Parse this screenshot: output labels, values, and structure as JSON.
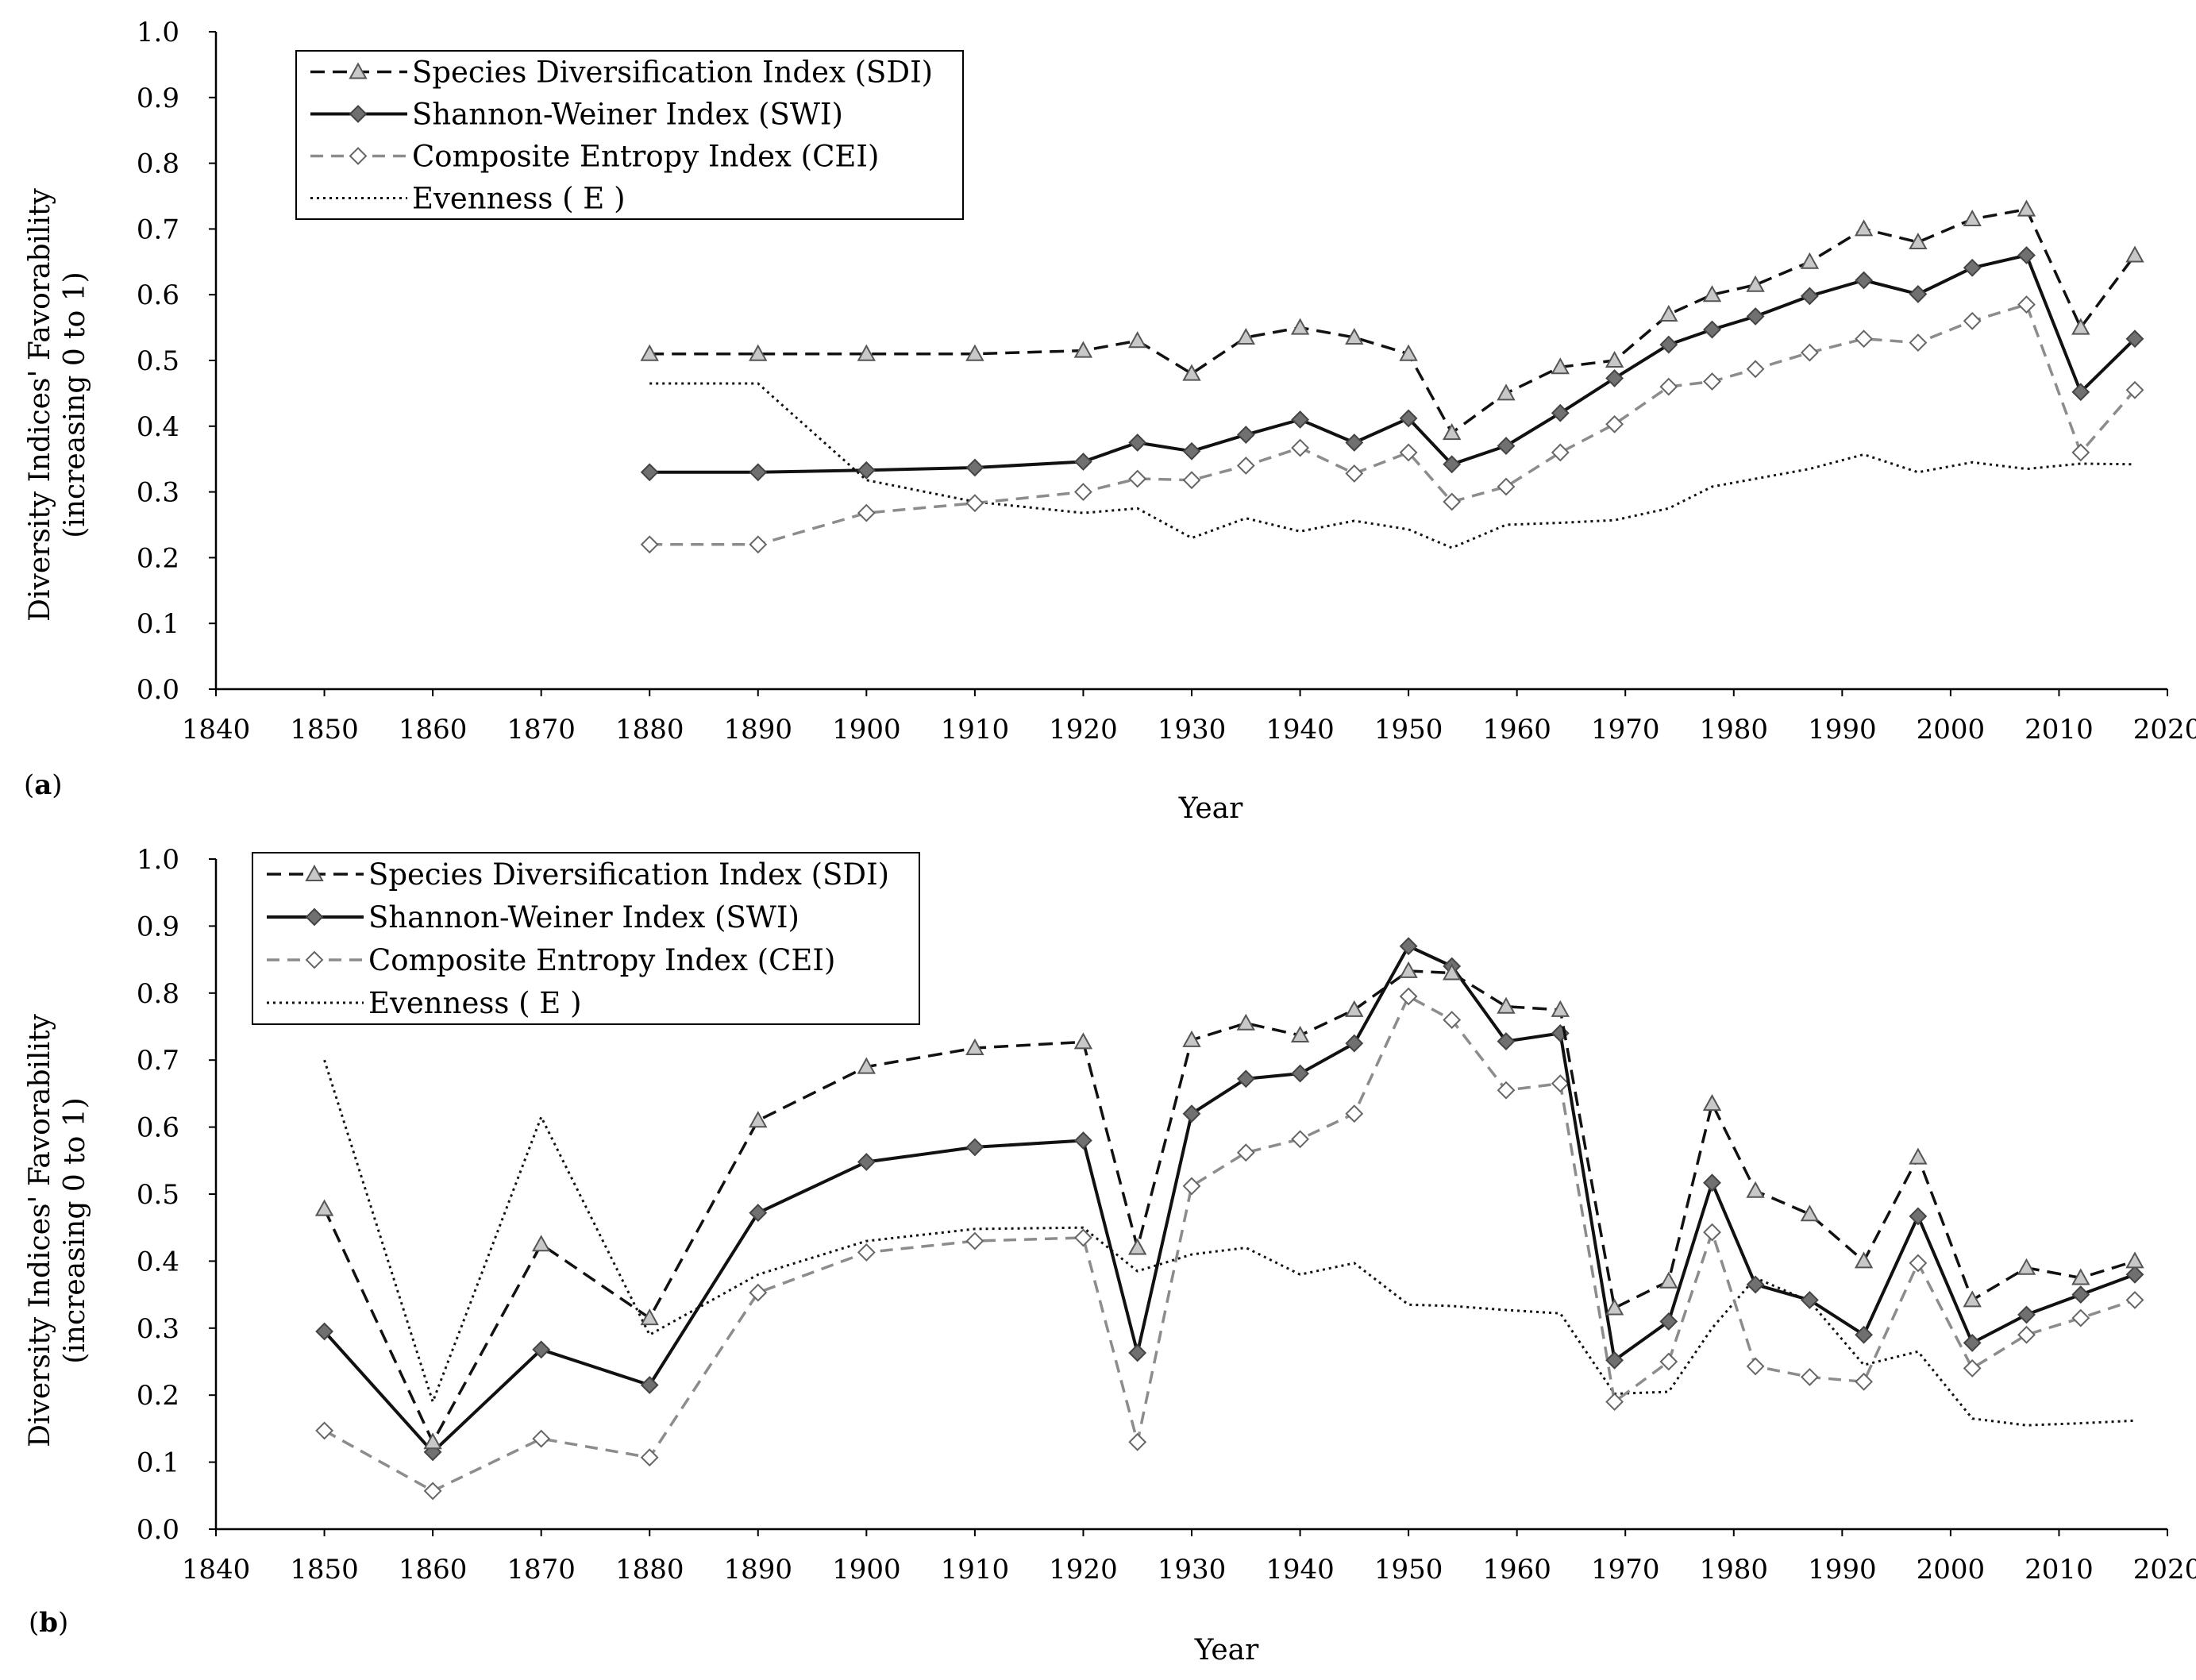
{
  "figure": {
    "panels": [
      {
        "label_open": "(",
        "label_letter": "a",
        "label_close": ")"
      },
      {
        "label_open": "(",
        "label_letter": "b",
        "label_close": ")"
      }
    ]
  },
  "chart_data": [
    {
      "type": "line",
      "panel": "a",
      "xlabel": "Year",
      "ylabel": [
        "Diversity Indices' Favorability",
        "(increasing 0 to 1)"
      ],
      "xlim": [
        1840,
        2020
      ],
      "ylim": [
        0,
        1
      ],
      "x_ticks": [
        "1840",
        "1850",
        "1860",
        "1870",
        "1880",
        "1890",
        "1900",
        "1910",
        "1920",
        "1930",
        "1940",
        "1950",
        "1960",
        "1970",
        "1980",
        "1990",
        "2000",
        "2010",
        "2020"
      ],
      "y_ticks": [
        "0.0",
        "0.1",
        "0.2",
        "0.3",
        "0.4",
        "0.5",
        "0.6",
        "0.7",
        "0.8",
        "0.9",
        "1.0"
      ],
      "grid": false,
      "legend_position": "top-left",
      "series": [
        {
          "key": "sdi",
          "name": "Species Diversification Index (SDI)",
          "x": [
            1880,
            1890,
            1900,
            1910,
            1920,
            1925,
            1930,
            1935,
            1940,
            1945,
            1950,
            1954,
            1959,
            1964,
            1969,
            1974,
            1978,
            1982,
            1987,
            1992,
            1997,
            2002,
            2007,
            2012,
            2017
          ],
          "values": [
            0.51,
            0.51,
            0.51,
            0.51,
            0.515,
            0.53,
            0.48,
            0.535,
            0.55,
            0.535,
            0.51,
            0.39,
            0.45,
            0.49,
            0.5,
            0.57,
            0.6,
            0.615,
            0.65,
            0.7,
            0.68,
            0.715,
            0.73,
            0.55,
            0.66
          ]
        },
        {
          "key": "swi",
          "name": "Shannon-Weiner Index (SWI)",
          "x": [
            1880,
            1890,
            1900,
            1910,
            1920,
            1925,
            1930,
            1935,
            1940,
            1945,
            1950,
            1954,
            1959,
            1964,
            1969,
            1974,
            1978,
            1982,
            1987,
            1992,
            1997,
            2002,
            2007,
            2012,
            2017
          ],
          "values": [
            0.33,
            0.33,
            0.333,
            0.337,
            0.346,
            0.375,
            0.362,
            0.387,
            0.41,
            0.375,
            0.412,
            0.342,
            0.37,
            0.42,
            0.473,
            0.524,
            0.547,
            0.567,
            0.598,
            0.622,
            0.601,
            0.641,
            0.66,
            0.452,
            0.533
          ]
        },
        {
          "key": "cei",
          "name": "Composite Entropy Index (CEI)",
          "x": [
            1880,
            1890,
            1900,
            1910,
            1920,
            1925,
            1930,
            1935,
            1940,
            1945,
            1950,
            1954,
            1959,
            1964,
            1969,
            1974,
            1978,
            1982,
            1987,
            1992,
            1997,
            2002,
            2007,
            2012,
            2017
          ],
          "values": [
            0.22,
            0.22,
            0.268,
            0.283,
            0.3,
            0.32,
            0.318,
            0.34,
            0.367,
            0.328,
            0.36,
            0.285,
            0.308,
            0.36,
            0.403,
            0.46,
            0.468,
            0.487,
            0.512,
            0.533,
            0.527,
            0.56,
            0.585,
            0.36,
            0.455
          ]
        },
        {
          "key": "e",
          "name": "Evenness ( E )",
          "x": [
            1880,
            1890,
            1900,
            1910,
            1920,
            1925,
            1930,
            1935,
            1940,
            1945,
            1950,
            1954,
            1959,
            1964,
            1969,
            1974,
            1978,
            1982,
            1987,
            1992,
            1997,
            2002,
            2007,
            2012,
            2017
          ],
          "values": [
            0.465,
            0.465,
            0.318,
            0.285,
            0.268,
            0.275,
            0.23,
            0.26,
            0.24,
            0.256,
            0.243,
            0.215,
            0.25,
            0.253,
            0.257,
            0.275,
            0.308,
            0.32,
            0.335,
            0.357,
            0.33,
            0.345,
            0.335,
            0.343,
            0.342
          ]
        }
      ]
    },
    {
      "type": "line",
      "panel": "b",
      "xlabel": "Year",
      "ylabel": [
        "Diversity Indices' Favorability",
        "(increasing 0 to 1)"
      ],
      "xlim": [
        1840,
        2020
      ],
      "ylim": [
        0,
        1
      ],
      "x_ticks": [
        "1840",
        "1850",
        "1860",
        "1870",
        "1880",
        "1890",
        "1900",
        "1910",
        "1920",
        "1930",
        "1940",
        "1950",
        "1960",
        "1970",
        "1980",
        "1990",
        "2000",
        "2010",
        "2020"
      ],
      "y_ticks": [
        "0.0",
        "0.1",
        "0.2",
        "0.3",
        "0.4",
        "0.5",
        "0.6",
        "0.7",
        "0.8",
        "0.9",
        "1.0"
      ],
      "grid": false,
      "legend_position": "top-left",
      "series": [
        {
          "key": "sdi",
          "name": "Species Diversification Index (SDI)",
          "x": [
            1850,
            1860,
            1870,
            1880,
            1890,
            1900,
            1910,
            1920,
            1925,
            1930,
            1935,
            1940,
            1945,
            1950,
            1954,
            1959,
            1964,
            1969,
            1974,
            1978,
            1982,
            1987,
            1992,
            1997,
            2002,
            2007,
            2012,
            2017
          ],
          "values": [
            0.478,
            0.13,
            0.425,
            0.315,
            0.61,
            0.69,
            0.718,
            0.727,
            0.42,
            0.73,
            0.755,
            0.737,
            0.775,
            0.833,
            0.83,
            0.78,
            0.775,
            0.33,
            0.37,
            0.635,
            0.505,
            0.47,
            0.4,
            0.555,
            0.342,
            0.39,
            0.375,
            0.4
          ]
        },
        {
          "key": "swi",
          "name": "Shannon-Weiner Index (SWI)",
          "x": [
            1850,
            1860,
            1870,
            1880,
            1890,
            1900,
            1910,
            1920,
            1925,
            1930,
            1935,
            1940,
            1945,
            1950,
            1954,
            1959,
            1964,
            1969,
            1974,
            1978,
            1982,
            1987,
            1992,
            1997,
            2002,
            2007,
            2012,
            2017
          ],
          "values": [
            0.295,
            0.115,
            0.268,
            0.215,
            0.472,
            0.548,
            0.57,
            0.58,
            0.263,
            0.62,
            0.672,
            0.68,
            0.725,
            0.87,
            0.84,
            0.728,
            0.74,
            0.252,
            0.31,
            0.517,
            0.365,
            0.342,
            0.29,
            0.467,
            0.278,
            0.32,
            0.35,
            0.38
          ]
        },
        {
          "key": "cei",
          "name": "Composite Entropy Index (CEI)",
          "x": [
            1850,
            1860,
            1870,
            1880,
            1890,
            1900,
            1910,
            1920,
            1925,
            1930,
            1935,
            1940,
            1945,
            1950,
            1954,
            1959,
            1964,
            1969,
            1974,
            1978,
            1982,
            1987,
            1992,
            1997,
            2002,
            2007,
            2012,
            2017
          ],
          "values": [
            0.147,
            0.057,
            0.135,
            0.107,
            0.353,
            0.413,
            0.43,
            0.435,
            0.13,
            0.512,
            0.562,
            0.582,
            0.62,
            0.795,
            0.76,
            0.655,
            0.665,
            0.19,
            0.25,
            0.443,
            0.243,
            0.227,
            0.22,
            0.397,
            0.24,
            0.29,
            0.315,
            0.342
          ]
        },
        {
          "key": "e",
          "name": "Evenness ( E )",
          "x": [
            1850,
            1860,
            1870,
            1880,
            1890,
            1900,
            1910,
            1920,
            1925,
            1930,
            1935,
            1940,
            1945,
            1950,
            1954,
            1959,
            1964,
            1969,
            1974,
            1978,
            1982,
            1987,
            1992,
            1997,
            2002,
            2007,
            2012,
            2017
          ],
          "values": [
            0.7,
            0.19,
            0.615,
            0.29,
            0.38,
            0.43,
            0.448,
            0.45,
            0.385,
            0.41,
            0.42,
            0.38,
            0.397,
            0.335,
            0.333,
            0.327,
            0.322,
            0.202,
            0.205,
            0.3,
            0.375,
            0.34,
            0.245,
            0.265,
            0.165,
            0.155,
            0.158,
            0.162
          ]
        }
      ]
    }
  ]
}
